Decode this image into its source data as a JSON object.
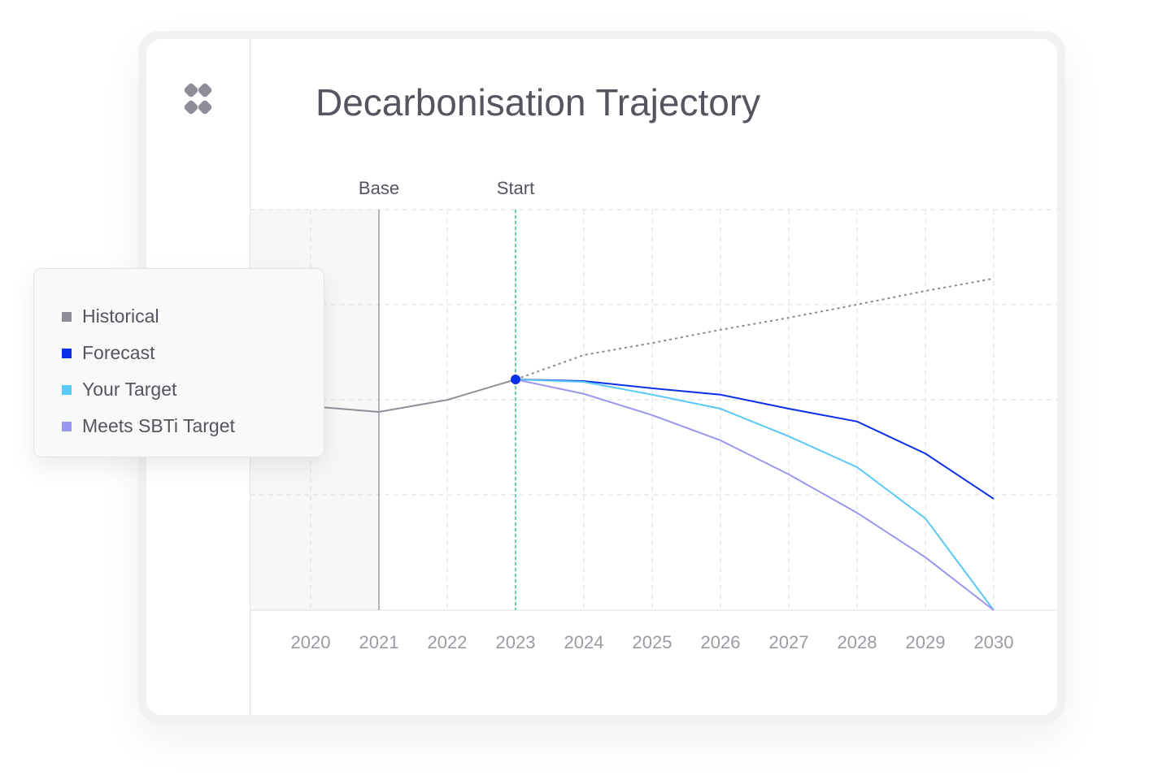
{
  "chart_data": {
    "type": "line",
    "title": "Decarbonisation Trajectory",
    "categories": [
      "2020",
      "2021",
      "2022",
      "2023",
      "2024",
      "2025",
      "2026",
      "2027",
      "2028",
      "2029",
      "2030"
    ],
    "series": [
      {
        "name": "Historical",
        "color": "#8e8e99",
        "values": [
          50.9,
          49.5,
          52.5,
          57.6,
          null,
          null,
          null,
          null,
          null,
          null,
          null
        ]
      },
      {
        "color": "#8a8a8f",
        "style": "dotted",
        "values": [
          null,
          null,
          null,
          57.6,
          63.7,
          66.7,
          70.0,
          73.0,
          76.3,
          79.7,
          82.8
        ]
      },
      {
        "name": "Forecast",
        "color": "#0a2fe8",
        "values": [
          null,
          null,
          null,
          57.6,
          57.2,
          55.4,
          53.8,
          50.3,
          47.1,
          39.1,
          27.8
        ]
      },
      {
        "name": "Your Target",
        "color": "#5bc8f5",
        "values": [
          null,
          null,
          null,
          57.6,
          57.0,
          53.8,
          50.3,
          43.4,
          35.7,
          22.9,
          0
        ]
      },
      {
        "name": "Meets SBTi Target",
        "color": "#9b97f0",
        "values": [
          null,
          null,
          null,
          57.6,
          54.0,
          48.7,
          42.4,
          33.9,
          24.3,
          13.2,
          0
        ]
      }
    ],
    "annotations": [
      {
        "text": "Base",
        "x": "2021"
      },
      {
        "text": "Start",
        "x": "2023"
      }
    ],
    "ylim": [
      0,
      100
    ],
    "yticks": [
      28.8,
      52.5,
      76.3,
      100
    ],
    "grid": true
  }
}
